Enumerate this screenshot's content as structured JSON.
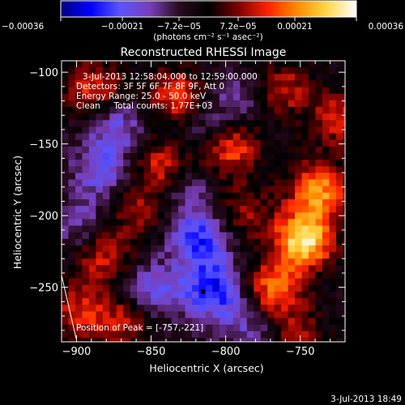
{
  "chart_data": {
    "type": "heatmap",
    "title": "Reconstructed RHESSI Image",
    "info_lines": [
      "3-Jul-2013 12:58:04.000 to 12:59:00.000",
      "Detectors: 3F 5F 6F 7F 8F 9F, Att 0",
      "Energy Range: 25.0 - 50.0 keV",
      "Clean     Total counts: 1.77E+03"
    ],
    "peak_label": "Position of Peak = [-757,-221]",
    "peak_position": [
      -757,
      -221
    ],
    "marker_position": [
      -815,
      -253
    ],
    "xlabel": "Heliocentric X (arcsec)",
    "ylabel": "Heliocentric Y (arcsec)",
    "xlim": [
      -910,
      -720
    ],
    "ylim": [
      -288,
      -92
    ],
    "x_ticks": [
      -900,
      -850,
      -800,
      -750
    ],
    "x_tick_labels": [
      "−900",
      "−850",
      "−800",
      "−750"
    ],
    "y_ticks": [
      -100,
      -150,
      -200,
      -250
    ],
    "y_tick_labels": [
      "−100",
      "−150",
      "−200",
      "−250"
    ],
    "colorbar": {
      "range": [
        -0.00036,
        0.00036
      ],
      "ticks": [
        -0.00036,
        -0.00021,
        -7.2e-05,
        7.2e-05,
        0.00021,
        0.00036
      ],
      "tick_labels": [
        "−0.00036",
        "−0.00021",
        "−7.2e−05",
        "7.2e−05",
        "0.00021",
        "0.00036"
      ],
      "unit_label": "(photons cm⁻² s⁻¹ asec⁻²)",
      "colormap": [
        "#000080",
        "#0000ff",
        "#5a55ff",
        "#7a3fb8",
        "#2a0a20",
        "#000000",
        "#7a0000",
        "#ff2200",
        "#ff8c00",
        "#ffd84a",
        "#ffffff"
      ]
    },
    "hot_spots": [
      {
        "x": -750,
        "y": -215,
        "value": 0.00036
      },
      {
        "x": -740,
        "y": -180,
        "value": 0.00026
      },
      {
        "x": -770,
        "y": -250,
        "value": 0.00024
      },
      {
        "x": -800,
        "y": -150,
        "value": 0.00022
      },
      {
        "x": -835,
        "y": -115,
        "value": 0.0002
      },
      {
        "x": -845,
        "y": -165,
        "value": 0.00019
      },
      {
        "x": -890,
        "y": -110,
        "value": 0.00018
      },
      {
        "x": -885,
        "y": -225,
        "value": 0.00017
      },
      {
        "x": -725,
        "y": -130,
        "value": 0.00017
      },
      {
        "x": -765,
        "y": -110,
        "value": 0.00016
      },
      {
        "x": -900,
        "y": -265,
        "value": 0.00016
      },
      {
        "x": -870,
        "y": -272,
        "value": 0.00014
      },
      {
        "x": -790,
        "y": -195,
        "value": 0.00012
      },
      {
        "x": -860,
        "y": -195,
        "value": 0.00012
      },
      {
        "x": -755,
        "y": -282,
        "value": 0.00012
      }
    ],
    "cold_spots": [
      {
        "x": -820,
        "y": -215,
        "value": -0.00022
      },
      {
        "x": -810,
        "y": -250,
        "value": -0.00024
      },
      {
        "x": -850,
        "y": -250,
        "value": -0.00016
      },
      {
        "x": -885,
        "y": -165,
        "value": -0.00016
      },
      {
        "x": -875,
        "y": -135,
        "value": -0.00014
      },
      {
        "x": -830,
        "y": -180,
        "value": -0.00012
      },
      {
        "x": -815,
        "y": -135,
        "value": -0.00012
      },
      {
        "x": -790,
        "y": -115,
        "value": -0.0001
      },
      {
        "x": -900,
        "y": -205,
        "value": -0.00012
      },
      {
        "x": -785,
        "y": -275,
        "value": -0.00012
      }
    ]
  },
  "footer_timestamp": "3-Jul-2013 18:49"
}
